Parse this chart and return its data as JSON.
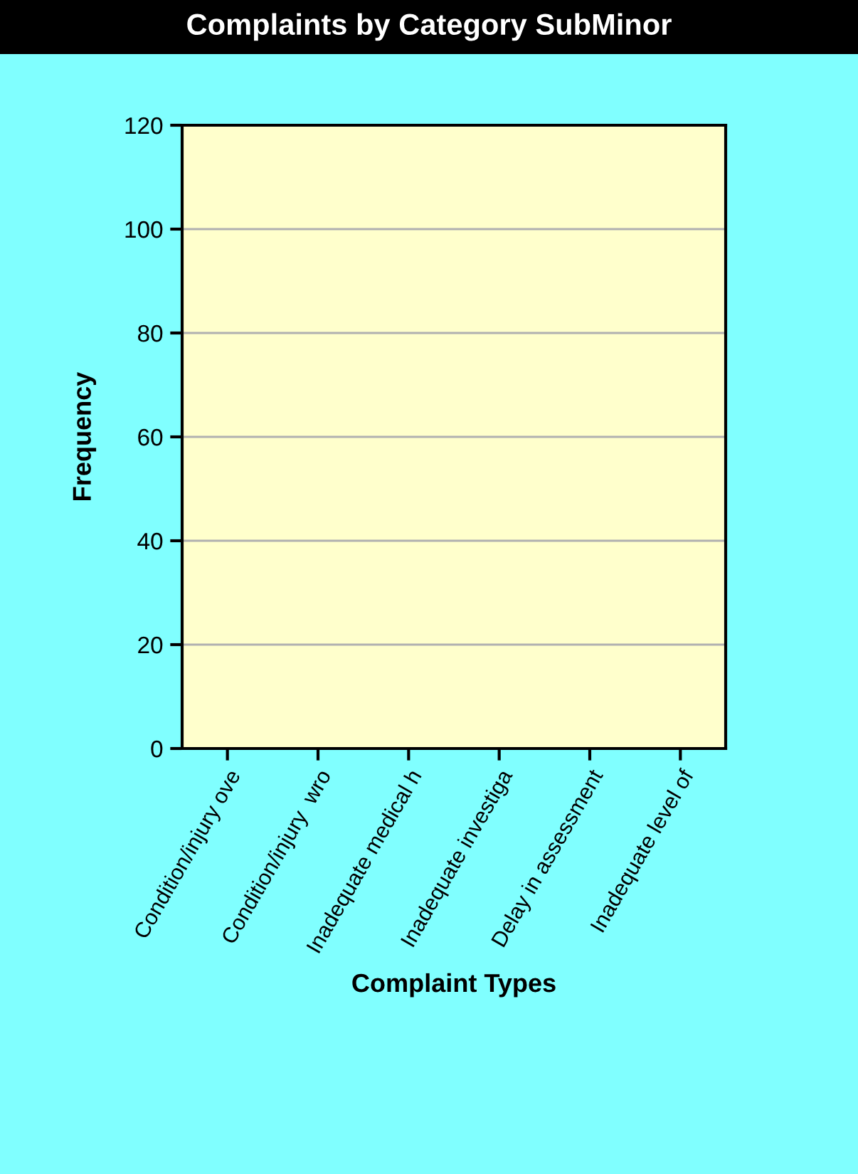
{
  "chart_data": {
    "type": "bar",
    "title": "Complaints by Category SubMinor",
    "xlabel": "Complaint Types",
    "ylabel": "Frequency",
    "categories": [
      "Condition/injury ove",
      "Condition/injury  wro",
      "Inadequate medical h",
      "Inadequate investiga",
      "Delay in assessment",
      "Inadequate level of"
    ],
    "values": [
      0,
      0,
      0,
      0,
      0,
      0
    ],
    "ylim": [
      0,
      120
    ],
    "yticks": [
      0,
      20,
      40,
      60,
      80,
      100,
      120
    ],
    "grid": "y"
  }
}
